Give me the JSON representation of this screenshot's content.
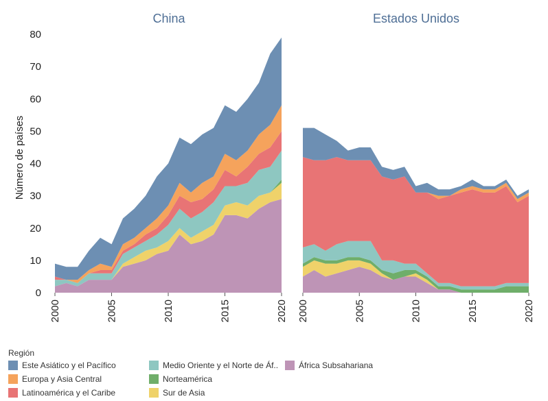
{
  "chart_data": {
    "type": "area",
    "stacked": true,
    "ylabel": "Número de países",
    "ylim": [
      0,
      80
    ],
    "yticks": [
      0,
      10,
      20,
      30,
      40,
      50,
      60,
      70,
      80
    ],
    "xlim": [
      2000,
      2020
    ],
    "xticks": [
      2000,
      2005,
      2010,
      2015,
      2020
    ],
    "legend": {
      "title": "Región",
      "items": [
        {
          "name": "Este Asiático y el Pacífico",
          "color": "#6d8fb3"
        },
        {
          "name": "Europa y Asia Central",
          "color": "#f5a35c"
        },
        {
          "name": "Latinoamérica y el Caribe",
          "color": "#e87475"
        },
        {
          "name": "Medio Oriente y el Norte de Áf..",
          "color": "#8ec7c1"
        },
        {
          "name": "Norteamérica",
          "color": "#6fae6a"
        },
        {
          "name": "Sur de Asia",
          "color": "#efd26a"
        },
        {
          "name": "África Subsahariana",
          "color": "#be94b6"
        }
      ]
    },
    "years": [
      2000,
      2001,
      2002,
      2003,
      2004,
      2005,
      2006,
      2007,
      2008,
      2009,
      2010,
      2011,
      2012,
      2013,
      2014,
      2015,
      2016,
      2017,
      2018,
      2019,
      2020
    ],
    "panels": [
      {
        "title": "China",
        "series": [
          {
            "name": "África Subsahariana",
            "values": [
              2,
              3,
              2,
              4,
              4,
              4,
              8,
              9,
              10,
              12,
              13,
              18,
              15,
              16,
              18,
              24,
              24,
              23,
              26,
              28,
              29
            ]
          },
          {
            "name": "Sur de Asia",
            "values": [
              0,
              0,
              0,
              0,
              0,
              0,
              1,
              2,
              3,
              2,
              3,
              2,
              2,
              3,
              3,
              3,
              4,
              4,
              4,
              3,
              5
            ]
          },
          {
            "name": "Norteamérica",
            "values": [
              0,
              0,
              0,
              0,
              0,
              0,
              0,
              0,
              0,
              0,
              0,
              0,
              0,
              0,
              0,
              0,
              0,
              0,
              0,
              0,
              1
            ]
          },
          {
            "name": "Medio Oriente y el Norte de Áf..",
            "values": [
              2,
              1,
              1,
              2,
              2,
              2,
              3,
              3,
              3,
              4,
              5,
              6,
              6,
              6,
              7,
              6,
              5,
              7,
              8,
              8,
              9
            ]
          },
          {
            "name": "Latinoamérica y el Caribe",
            "values": [
              1,
              0,
              0,
              0,
              1,
              1,
              1,
              1,
              2,
              2,
              3,
              4,
              5,
              4,
              4,
              5,
              3,
              5,
              5,
              6,
              6
            ]
          },
          {
            "name": "Europa y Asia Central",
            "values": [
              0,
              0,
              1,
              1,
              2,
              1,
              2,
              2,
              2,
              3,
              3,
              4,
              3,
              5,
              4,
              5,
              5,
              5,
              6,
              7,
              8
            ]
          },
          {
            "name": "Este Asiático y el Pacífico",
            "values": [
              4,
              4,
              4,
              6,
              8,
              7,
              8,
              9,
              10,
              13,
              13,
              14,
              15,
              15,
              15,
              15,
              15,
              16,
              16,
              22,
              21
            ]
          }
        ]
      },
      {
        "title": "Estados Unidos",
        "series": [
          {
            "name": "África Subsahariana",
            "values": [
              5,
              7,
              5,
              6,
              7,
              8,
              7,
              5,
              4,
              5,
              5,
              3,
              1,
              1,
              0,
              0,
              0,
              0,
              0,
              0,
              0
            ]
          },
          {
            "name": "Sur de Asia",
            "values": [
              3,
              3,
              4,
              3,
              3,
              2,
              2,
              1,
              0,
              0,
              1,
              1,
              0,
              0,
              0,
              0,
              0,
              0,
              0,
              0,
              0
            ]
          },
          {
            "name": "Norteamérica",
            "values": [
              1,
              1,
              1,
              1,
              1,
              1,
              1,
              1,
              2,
              2,
              1,
              1,
              1,
              1,
              1,
              1,
              1,
              1,
              2,
              2,
              2
            ]
          },
          {
            "name": "Medio Oriente y el Norte de Áf..",
            "values": [
              5,
              4,
              3,
              5,
              5,
              5,
              6,
              3,
              4,
              2,
              2,
              1,
              1,
              1,
              1,
              1,
              1,
              1,
              1,
              1,
              1
            ]
          },
          {
            "name": "Latinoamérica y el Caribe",
            "values": [
              28,
              26,
              28,
              27,
              25,
              25,
              25,
              26,
              25,
              27,
              22,
              25,
              26,
              27,
              29,
              30,
              29,
              29,
              30,
              25,
              27
            ]
          },
          {
            "name": "Europa y Asia Central",
            "values": [
              0,
              0,
              0,
              0,
              0,
              0,
              0,
              0,
              0,
              0,
              0,
              0,
              1,
              0,
              1,
              1,
              1,
              1,
              1,
              1,
              1
            ]
          },
          {
            "name": "Este Asiático y el Pacífico",
            "values": [
              9,
              10,
              8,
              5,
              3,
              4,
              4,
              3,
              3,
              3,
              2,
              3,
              2,
              2,
              1,
              2,
              1,
              1,
              1,
              1,
              1
            ]
          }
        ]
      }
    ]
  }
}
